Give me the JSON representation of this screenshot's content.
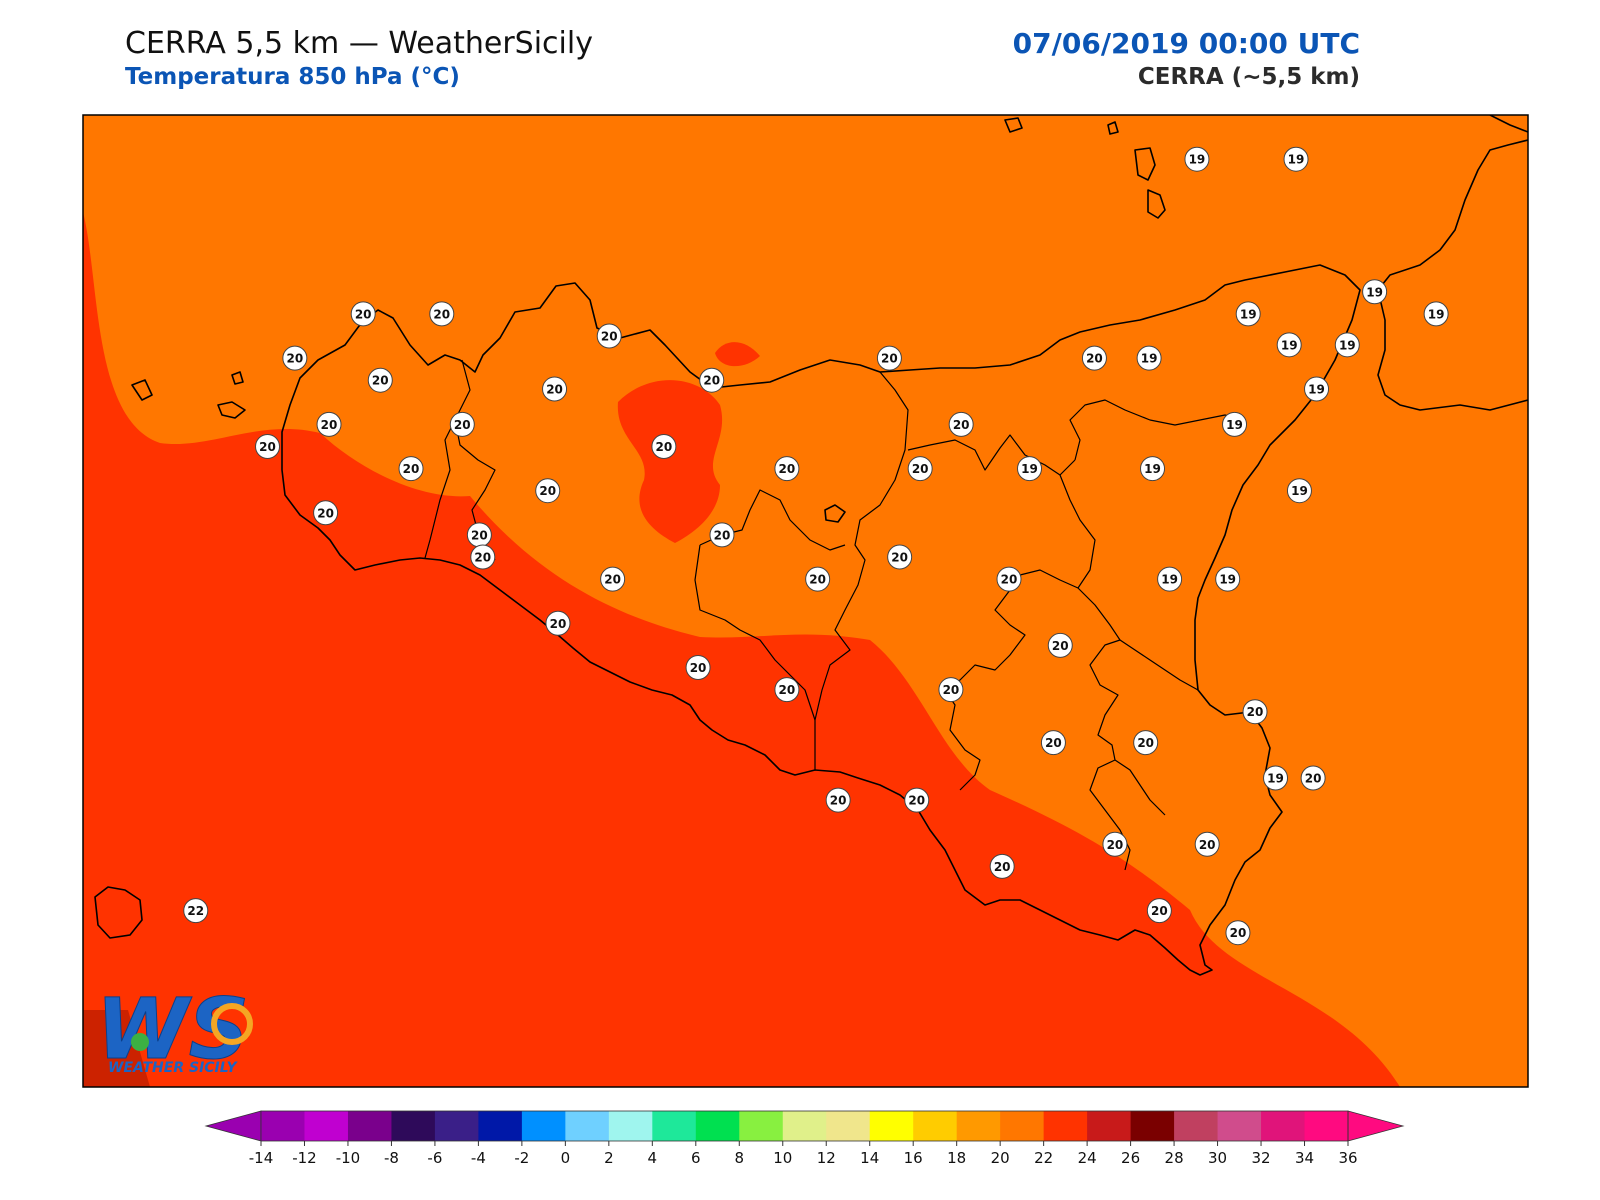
{
  "header": {
    "title": "CERRA 5,5 km — WeatherSicily",
    "subtitle": "Temperatura 850 hPa (°C)",
    "datetime": "07/06/2019 00:00 UTC",
    "model": "CERRA (~5,5 km)"
  },
  "logo": {
    "letters": "WS",
    "text": "WEATHER SICILY"
  },
  "colors": {
    "band_18_20": "#ff7700",
    "band_20_22": "#ff3300",
    "coast": "#000000",
    "marker_fill": "#ffffff"
  },
  "colorbar": {
    "ticks": [
      "-14",
      "-12",
      "-10",
      "-8",
      "-6",
      "-4",
      "-2",
      "0",
      "2",
      "4",
      "6",
      "8",
      "10",
      "12",
      "14",
      "16",
      "18",
      "20",
      "22",
      "24",
      "26",
      "28",
      "30",
      "32",
      "34",
      "36"
    ],
    "colors": [
      "#9a00b0",
      "#c000d0",
      "#7a008c",
      "#2e0a5a",
      "#3a1f88",
      "#0018a8",
      "#0090ff",
      "#6fd0ff",
      "#9ff5ee",
      "#1ee89a",
      "#00e050",
      "#88f040",
      "#e0f08a",
      "#f0e68c",
      "#ffff00",
      "#ffcc00",
      "#ff9900",
      "#ff7700",
      "#ff3300",
      "#c81a1a",
      "#7a0000",
      "#c04060",
      "#d04c8c",
      "#e0147a",
      "#ff0a80"
    ]
  },
  "stations": [
    {
      "v": "19",
      "lon": 14.96,
      "lat": 38.48
    },
    {
      "v": "19",
      "lon": 15.25,
      "lat": 38.48
    },
    {
      "v": "19",
      "lon": 15.48,
      "lat": 38.18
    },
    {
      "v": "19",
      "lon": 15.66,
      "lat": 38.13
    },
    {
      "v": "20",
      "lon": 12.52,
      "lat": 38.13
    },
    {
      "v": "20",
      "lon": 12.75,
      "lat": 38.13
    },
    {
      "v": "20",
      "lon": 13.24,
      "lat": 38.08
    },
    {
      "v": "19",
      "lon": 15.11,
      "lat": 38.13
    },
    {
      "v": "20",
      "lon": 12.32,
      "lat": 38.03
    },
    {
      "v": "20",
      "lon": 14.06,
      "lat": 38.03
    },
    {
      "v": "20",
      "lon": 14.66,
      "lat": 38.03
    },
    {
      "v": "19",
      "lon": 14.82,
      "lat": 38.03
    },
    {
      "v": "19",
      "lon": 15.23,
      "lat": 38.06
    },
    {
      "v": "19",
      "lon": 15.4,
      "lat": 38.06
    },
    {
      "v": "20",
      "lon": 12.57,
      "lat": 37.98
    },
    {
      "v": "20",
      "lon": 13.54,
      "lat": 37.98
    },
    {
      "v": "20",
      "lon": 13.08,
      "lat": 37.96
    },
    {
      "v": "19",
      "lon": 15.31,
      "lat": 37.96
    },
    {
      "v": "20",
      "lon": 12.42,
      "lat": 37.88
    },
    {
      "v": "20",
      "lon": 12.81,
      "lat": 37.88
    },
    {
      "v": "20",
      "lon": 14.27,
      "lat": 37.88
    },
    {
      "v": "19",
      "lon": 15.07,
      "lat": 37.88
    },
    {
      "v": "20",
      "lon": 12.24,
      "lat": 37.83
    },
    {
      "v": "20",
      "lon": 13.4,
      "lat": 37.83
    },
    {
      "v": "20",
      "lon": 12.66,
      "lat": 37.78
    },
    {
      "v": "20",
      "lon": 13.76,
      "lat": 37.78
    },
    {
      "v": "20",
      "lon": 14.15,
      "lat": 37.78
    },
    {
      "v": "19",
      "lon": 14.47,
      "lat": 37.78
    },
    {
      "v": "19",
      "lon": 14.83,
      "lat": 37.78
    },
    {
      "v": "20",
      "lon": 13.06,
      "lat": 37.73
    },
    {
      "v": "19",
      "lon": 15.26,
      "lat": 37.73
    },
    {
      "v": "20",
      "lon": 12.41,
      "lat": 37.68
    },
    {
      "v": "20",
      "lon": 12.86,
      "lat": 37.63
    },
    {
      "v": "20",
      "lon": 13.57,
      "lat": 37.63
    },
    {
      "v": "20",
      "lon": 12.87,
      "lat": 37.58
    },
    {
      "v": "20",
      "lon": 14.09,
      "lat": 37.58
    },
    {
      "v": "20",
      "lon": 13.25,
      "lat": 37.53
    },
    {
      "v": "20",
      "lon": 13.85,
      "lat": 37.53
    },
    {
      "v": "20",
      "lon": 14.41,
      "lat": 37.53
    },
    {
      "v": "19",
      "lon": 14.88,
      "lat": 37.53
    },
    {
      "v": "19",
      "lon": 15.05,
      "lat": 37.53
    },
    {
      "v": "20",
      "lon": 13.09,
      "lat": 37.43
    },
    {
      "v": "20",
      "lon": 14.56,
      "lat": 37.38
    },
    {
      "v": "20",
      "lon": 13.5,
      "lat": 37.33
    },
    {
      "v": "20",
      "lon": 13.76,
      "lat": 37.28
    },
    {
      "v": "20",
      "lon": 14.24,
      "lat": 37.28
    },
    {
      "v": "20",
      "lon": 15.13,
      "lat": 37.23
    },
    {
      "v": "20",
      "lon": 14.54,
      "lat": 37.16
    },
    {
      "v": "20",
      "lon": 14.81,
      "lat": 37.16
    },
    {
      "v": "20",
      "lon": 15.3,
      "lat": 37.08
    },
    {
      "v": "19",
      "lon": 15.19,
      "lat": 37.08
    },
    {
      "v": "20",
      "lon": 13.91,
      "lat": 37.03
    },
    {
      "v": "20",
      "lon": 14.14,
      "lat": 37.03
    },
    {
      "v": "20",
      "lon": 14.72,
      "lat": 36.93
    },
    {
      "v": "20",
      "lon": 14.99,
      "lat": 36.93
    },
    {
      "v": "20",
      "lon": 14.39,
      "lat": 36.88
    },
    {
      "v": "20",
      "lon": 14.85,
      "lat": 36.78
    },
    {
      "v": "20",
      "lon": 15.08,
      "lat": 36.73
    },
    {
      "v": "22",
      "lon": 12.03,
      "lat": 36.78
    }
  ]
}
